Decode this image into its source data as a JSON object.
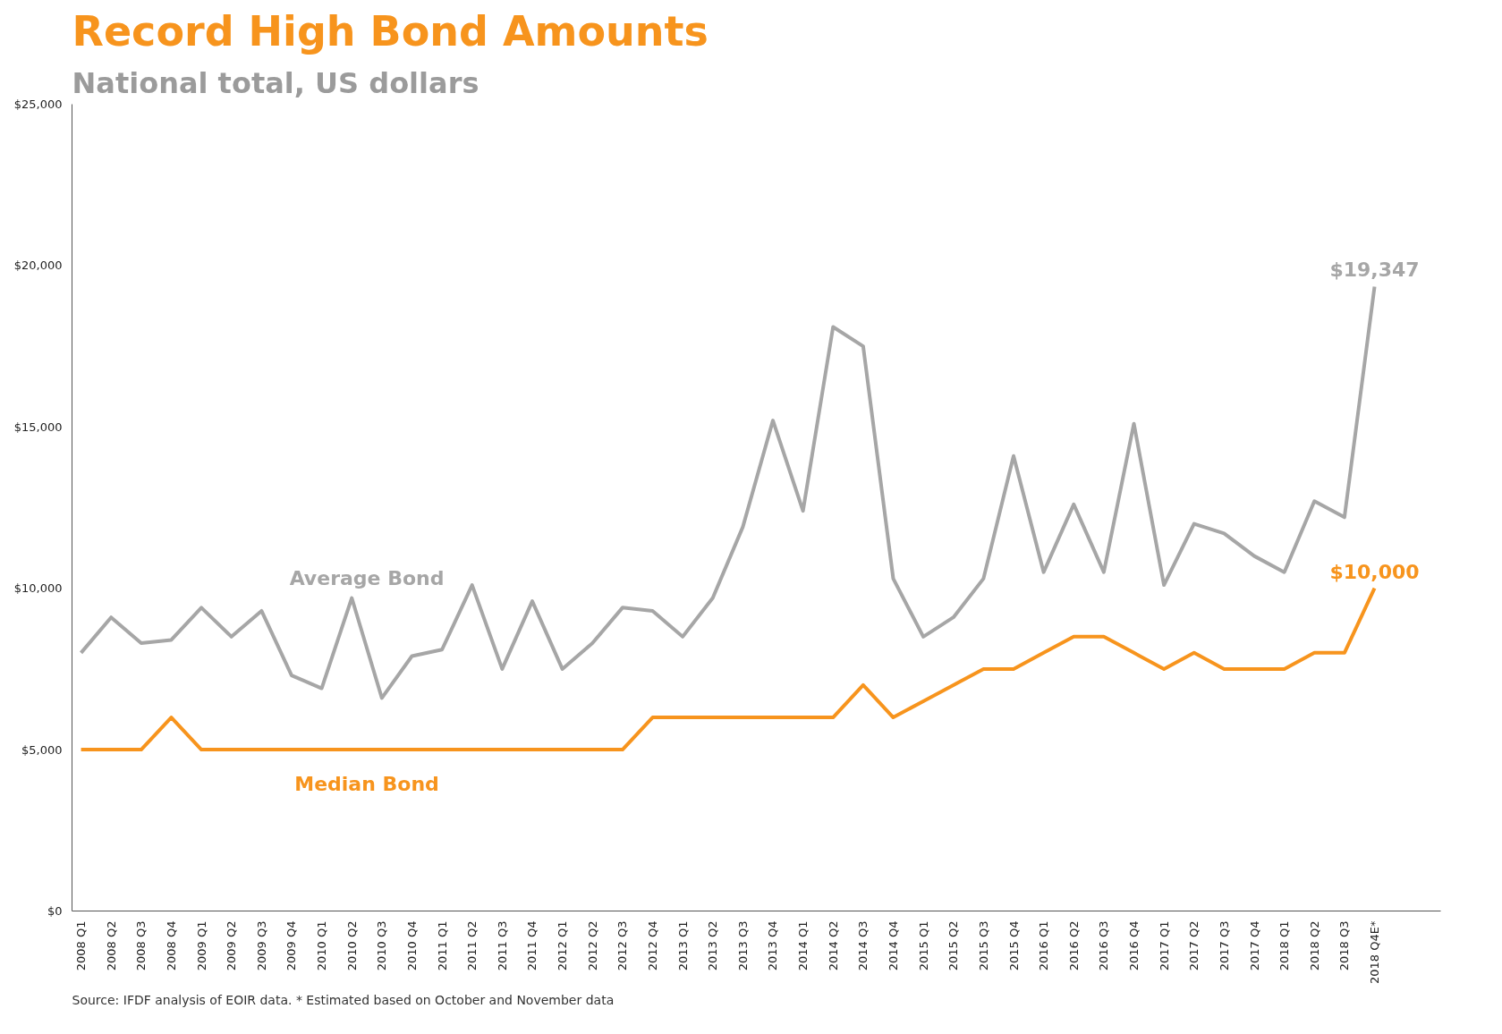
{
  "chart_data": {
    "type": "line",
    "title": "Record High Bond Amounts",
    "subtitle": "National total, US dollars",
    "categories": [
      "2008 Q1",
      "2008 Q2",
      "2008 Q3",
      "2008 Q4",
      "2009 Q1",
      "2009 Q2",
      "2009 Q3",
      "2009 Q4",
      "2010 Q1",
      "2010 Q2",
      "2010 Q3",
      "2010 Q4",
      "2011 Q1",
      "2011 Q2",
      "2011 Q3",
      "2011 Q4",
      "2012 Q1",
      "2012 Q2",
      "2012 Q3",
      "2012 Q4",
      "2013 Q1",
      "2013 Q2",
      "2013 Q3",
      "2013 Q4",
      "2014 Q1",
      "2014 Q2",
      "2014 Q3",
      "2014 Q4",
      "2015 Q1",
      "2015 Q2",
      "2015 Q3",
      "2015 Q4",
      "2016 Q1",
      "2016 Q2",
      "2016 Q3",
      "2016 Q4",
      "2017 Q1",
      "2017 Q2",
      "2017 Q3",
      "2017 Q4",
      "2018 Q1",
      "2018 Q2",
      "2018 Q3",
      "2018 Q4E*"
    ],
    "series": [
      {
        "name": "Average Bond",
        "color": "#a6a6a6",
        "values": [
          8000,
          9100,
          8300,
          8400,
          9400,
          8500,
          9300,
          7300,
          6900,
          9700,
          6600,
          7900,
          8100,
          10100,
          7500,
          9600,
          7500,
          8300,
          9400,
          9300,
          8500,
          9700,
          11900,
          15200,
          12400,
          18100,
          17500,
          10300,
          8500,
          9100,
          10300,
          14100,
          10500,
          12600,
          10500,
          15100,
          10100,
          12000,
          11700,
          11000,
          10500,
          12700,
          12200,
          19347
        ],
        "value_labels": [
          null,
          null,
          null,
          null,
          null,
          null,
          null,
          null,
          null,
          null,
          null,
          null,
          null,
          null,
          null,
          null,
          null,
          null,
          null,
          null,
          null,
          null,
          null,
          null,
          null,
          null,
          null,
          null,
          null,
          null,
          null,
          null,
          null,
          null,
          null,
          null,
          null,
          null,
          null,
          null,
          null,
          null,
          null,
          "$19,347"
        ]
      },
      {
        "name": "Median Bond",
        "color": "#f7941d",
        "values": [
          5000,
          5000,
          5000,
          6000,
          5000,
          5000,
          5000,
          5000,
          5000,
          5000,
          5000,
          5000,
          5000,
          5000,
          5000,
          5000,
          5000,
          5000,
          5000,
          6000,
          6000,
          6000,
          6000,
          6000,
          6000,
          6000,
          7000,
          6000,
          6500,
          7000,
          7500,
          7500,
          8000,
          8500,
          8500,
          8000,
          7500,
          8000,
          7500,
          7500,
          7500,
          8000,
          8000,
          10000
        ],
        "value_labels": [
          null,
          null,
          null,
          null,
          null,
          null,
          null,
          null,
          null,
          null,
          null,
          null,
          null,
          null,
          null,
          null,
          null,
          null,
          null,
          null,
          null,
          null,
          null,
          null,
          null,
          null,
          null,
          null,
          null,
          null,
          null,
          null,
          null,
          null,
          null,
          null,
          null,
          null,
          null,
          null,
          null,
          null,
          null,
          "$10,000"
        ]
      }
    ],
    "ylim": [
      0,
      25000
    ],
    "yticks": [
      {
        "value": 0,
        "label": "$0"
      },
      {
        "value": 5000,
        "label": "$5,000"
      },
      {
        "value": 10000,
        "label": "$10,000"
      },
      {
        "value": 15000,
        "label": "$15,000"
      },
      {
        "value": 20000,
        "label": "$20,000"
      },
      {
        "value": 25000,
        "label": "$25,000"
      }
    ],
    "annotations": [
      "Source: IFDF analysis of EOIR data. * Estimated based on October and November data"
    ]
  }
}
